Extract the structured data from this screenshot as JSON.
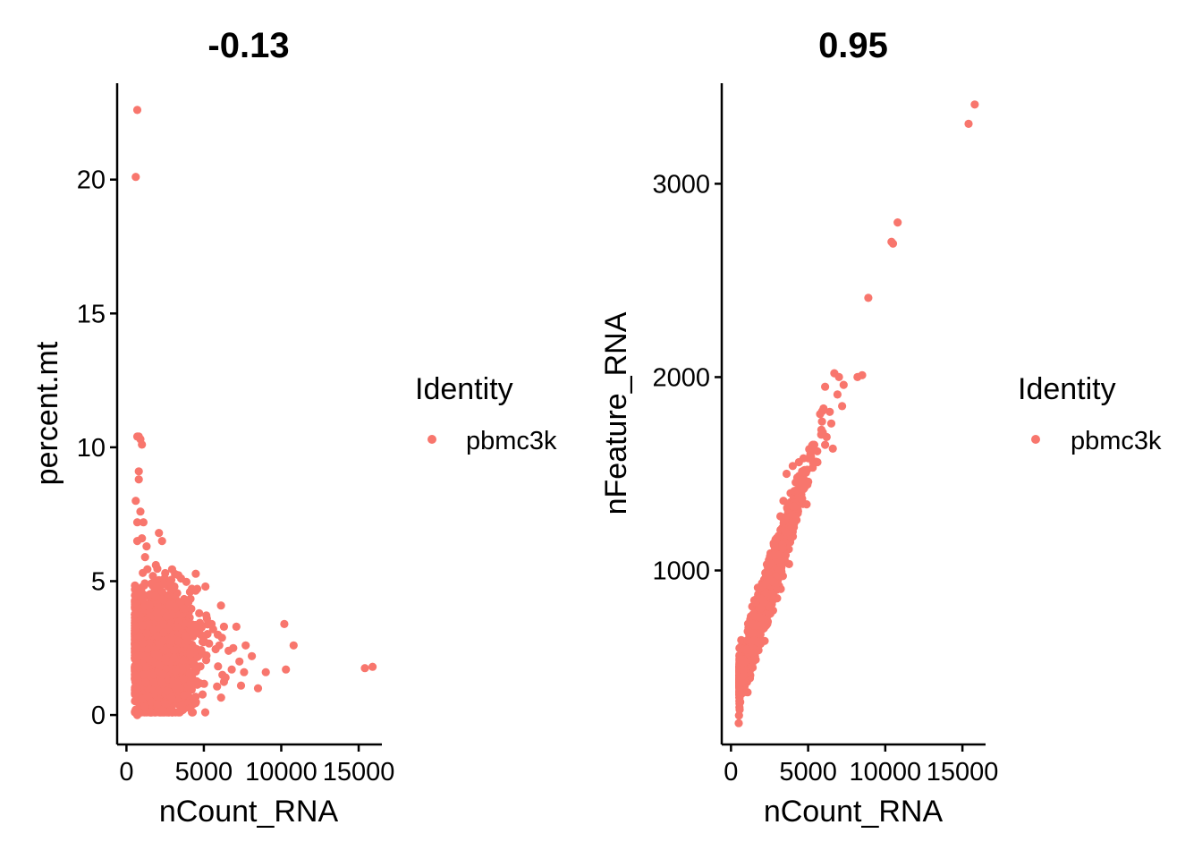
{
  "colors": {
    "point": "#F8766D",
    "axis": "#000000"
  },
  "chart_data": [
    {
      "type": "scatter",
      "title": "-0.13",
      "xlabel": "nCount_RNA",
      "ylabel": "percent.mt",
      "xlim": [
        -600,
        16500
      ],
      "ylim": [
        -1.1,
        23.6
      ],
      "xticks": [
        {
          "value": 0,
          "label": "0"
        },
        {
          "value": 5000,
          "label": "5000"
        },
        {
          "value": 10000,
          "label": "10000"
        },
        {
          "value": 15000,
          "label": "15000"
        }
      ],
      "yticks": [
        {
          "value": 0,
          "label": "0"
        },
        {
          "value": 5,
          "label": "5"
        },
        {
          "value": 10,
          "label": "10"
        },
        {
          "value": 15,
          "label": "15"
        },
        {
          "value": 20,
          "label": "20"
        }
      ],
      "legend": {
        "title": "Identity",
        "entries": [
          "pbmc3k"
        ],
        "position": "right"
      },
      "series": [
        {
          "name": "pbmc3k",
          "points": [
            [
              700,
              22.6
            ],
            [
              600,
              20.1
            ],
            [
              800,
              10.4
            ],
            [
              900,
              10.3
            ],
            [
              1000,
              10.1
            ],
            [
              700,
              10.4
            ],
            [
              800,
              9.1
            ],
            [
              800,
              8.8
            ],
            [
              600,
              8.0
            ],
            [
              900,
              7.6
            ],
            [
              700,
              7.2
            ],
            [
              1100,
              7.2
            ],
            [
              1000,
              6.6
            ],
            [
              700,
              6.5
            ],
            [
              2100,
              6.8
            ],
            [
              2300,
              6.5
            ],
            [
              1300,
              6.3
            ],
            [
              1200,
              5.9
            ],
            [
              1900,
              5.6
            ],
            [
              2500,
              5.3
            ],
            [
              2400,
              4.9
            ],
            [
              3100,
              4.8
            ],
            [
              4100,
              4.6
            ],
            [
              5100,
              4.8
            ],
            [
              4000,
              4.2
            ],
            [
              4700,
              3.8
            ],
            [
              5200,
              3.6
            ],
            [
              5500,
              3.4
            ],
            [
              5600,
              3.2
            ],
            [
              5900,
              3.0
            ],
            [
              7100,
              3.3
            ],
            [
              6000,
              2.6
            ],
            [
              6600,
              2.4
            ],
            [
              6900,
              2.5
            ],
            [
              7700,
              2.6
            ],
            [
              8100,
              2.2
            ],
            [
              7300,
              2.0
            ],
            [
              6800,
              1.7
            ],
            [
              7600,
              1.6
            ],
            [
              9000,
              1.6
            ],
            [
              6200,
              1.5
            ],
            [
              6400,
              1.4
            ],
            [
              7400,
              1.1
            ],
            [
              8500,
              1.0
            ],
            [
              10200,
              3.4
            ],
            [
              10800,
              2.6
            ],
            [
              10300,
              1.7
            ],
            [
              15400,
              1.75
            ],
            [
              15900,
              1.8
            ],
            [
              600,
              0.2
            ],
            [
              700,
              0.0
            ],
            [
              800,
              0.1
            ],
            [
              1200,
              0.3
            ],
            [
              1600,
              0.5
            ],
            [
              2000,
              0.4
            ],
            [
              1000,
              0.6
            ],
            [
              1800,
              0.8
            ],
            [
              1400,
              0.7
            ],
            [
              2600,
              0.9
            ],
            [
              3200,
              1.0
            ]
          ],
          "cluster": {
            "x_center": 2200,
            "x_spread": 1600,
            "x_min": 550,
            "x_max": 6300,
            "y_center": 2.4,
            "y_spread": 1.1,
            "y_min": 0.1,
            "y_max": 5.6,
            "count": 1900
          }
        }
      ]
    },
    {
      "type": "scatter",
      "title": "0.95",
      "xlabel": "nCount_RNA",
      "ylabel": "nFeature_RNA",
      "xlim": [
        -600,
        16500
      ],
      "ylim": [
        100,
        3520
      ],
      "xticks": [
        {
          "value": 0,
          "label": "0"
        },
        {
          "value": 5000,
          "label": "5000"
        },
        {
          "value": 10000,
          "label": "10000"
        },
        {
          "value": 15000,
          "label": "15000"
        }
      ],
      "yticks": [
        {
          "value": 1000,
          "label": "1000"
        },
        {
          "value": 2000,
          "label": "2000"
        },
        {
          "value": 3000,
          "label": "3000"
        }
      ],
      "legend": {
        "title": "Identity",
        "entries": [
          "pbmc3k"
        ],
        "position": "right"
      },
      "series": [
        {
          "name": "pbmc3k",
          "points": [
            [
              15800,
              3410
            ],
            [
              15400,
              3310
            ],
            [
              10800,
              2800
            ],
            [
              10400,
              2700
            ],
            [
              10500,
              2690
            ],
            [
              8900,
              2410
            ],
            [
              8500,
              2010
            ],
            [
              8200,
              2000
            ],
            [
              6700,
              2020
            ],
            [
              7000,
              2000
            ],
            [
              7300,
              1960
            ],
            [
              6100,
              1950
            ],
            [
              6900,
              1910
            ],
            [
              7200,
              1850
            ],
            [
              6400,
              1820
            ],
            [
              6500,
              1760
            ],
            [
              5900,
              1770
            ],
            [
              6200,
              1690
            ],
            [
              6100,
              1650
            ],
            [
              6600,
              1630
            ],
            [
              5300,
              1650
            ],
            [
              5600,
              1560
            ],
            [
              4700,
              1580
            ],
            [
              4400,
              1560
            ],
            [
              4000,
              1540
            ],
            [
              3600,
              1500
            ],
            [
              4300,
              1480
            ],
            [
              3400,
              1360
            ],
            [
              3200,
              1280
            ],
            [
              3700,
              1340
            ],
            [
              4100,
              1330
            ],
            [
              500,
              210
            ],
            [
              520,
              250
            ],
            [
              560,
              280
            ],
            [
              600,
              320
            ],
            [
              650,
              360
            ],
            [
              700,
              420
            ],
            [
              800,
              480
            ],
            [
              900,
              530
            ],
            [
              1000,
              590
            ]
          ],
          "cluster": {
            "x_center": 2200,
            "x_spread": 1600,
            "x_min": 550,
            "x_max": 6300,
            "slope": 0.245,
            "intercept": 300,
            "noise": 60,
            "count": 1800
          }
        }
      ]
    }
  ]
}
